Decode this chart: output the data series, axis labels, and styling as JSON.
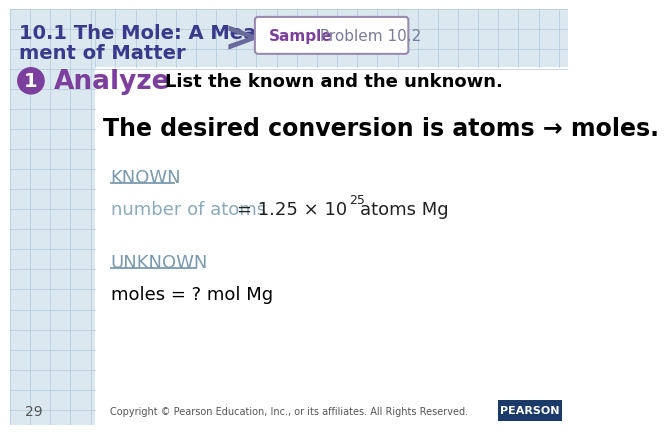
{
  "bg_color": "#dce8f0",
  "title_line1": "10.1 The Mole: A Measure-",
  "title_line2": "ment of Matter",
  "title_color": "#3a3a8c",
  "arrow_color": "#6a6a9a",
  "sample_label": "Sample",
  "sample_color": "#7c3f9e",
  "problem_label": " Problem 10.2",
  "problem_color": "#7a7a9a",
  "badge_border": "#9a8ab0",
  "step_number": "1",
  "step_bg": "#7c3f9e",
  "step_label": "Analyze",
  "step_label_color": "#7c3f9e",
  "step_desc": "List the known and the unknown.",
  "step_desc_color": "#000000",
  "conversion_text": "The desired conversion is atoms → moles.",
  "conversion_color": "#000000",
  "known_label": "KNOWN",
  "known_color": "#7a9ab0",
  "known_text_gray": "number of atoms",
  "known_text_gray_color": "#8aaabc",
  "known_superscript": "25",
  "known_text_end": " atoms Mg",
  "unknown_label": "UNKNOWN",
  "unknown_color": "#7a9ab0",
  "unknown_text": "moles = ? mol Mg",
  "unknown_text_color": "#000000",
  "page_number": "29",
  "copyright_text": "Copyright © Pearson Education, Inc., or its affiliates. All Rights Reserved.",
  "grid_color": "#b8cedd",
  "white_bg": "#ffffff",
  "pearson_bg": "#1a3a6a",
  "footer_color": "#555555"
}
